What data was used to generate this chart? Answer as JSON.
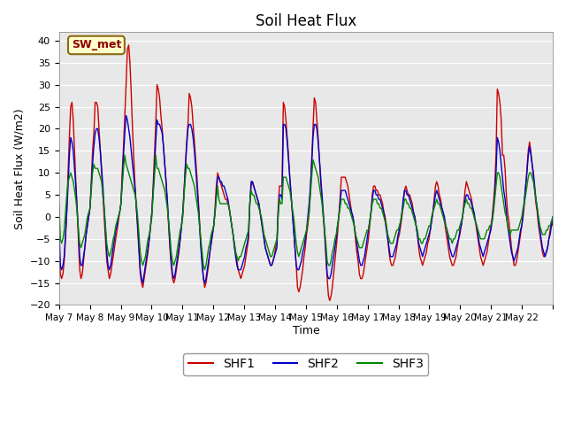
{
  "title": "Soil Heat Flux",
  "ylabel": "Soil Heat Flux (W/m2)",
  "xlabel": "Time",
  "ylim": [
    -20,
    42
  ],
  "yticks": [
    -20,
    -15,
    -10,
    -5,
    0,
    5,
    10,
    15,
    20,
    25,
    30,
    35,
    40
  ],
  "fig_bg": "#ffffff",
  "plot_bg": "#e8e8e8",
  "annotation_text": "SW_met",
  "annotation_bg": "#ffffcc",
  "annotation_border": "#8B6914",
  "annotation_text_color": "#8B0000",
  "line_colors": {
    "SHF1": "#cc0000",
    "SHF2": "#0000cc",
    "SHF3": "#008800"
  },
  "shf1": [
    -6,
    -13,
    -14,
    -13,
    -10,
    -5,
    2,
    10,
    18,
    25,
    26,
    22,
    15,
    8,
    2,
    -5,
    -12,
    -14,
    -13,
    -10,
    -7,
    -4,
    -2,
    0,
    2,
    8,
    15,
    19,
    26,
    26,
    25,
    20,
    15,
    10,
    5,
    0,
    -5,
    -10,
    -12,
    -14,
    -13,
    -11,
    -9,
    -7,
    -5,
    -3,
    -1,
    1,
    3,
    10,
    16,
    23,
    30,
    38,
    39,
    35,
    28,
    20,
    13,
    7,
    2,
    -3,
    -8,
    -13,
    -15,
    -16,
    -14,
    -12,
    -10,
    -8,
    -5,
    -2,
    1,
    7,
    14,
    21,
    30,
    29,
    27,
    23,
    20,
    16,
    12,
    8,
    3,
    -2,
    -7,
    -11,
    -14,
    -15,
    -14,
    -12,
    -10,
    -8,
    -5,
    -2,
    1,
    6,
    12,
    17,
    21,
    28,
    27,
    25,
    21,
    17,
    13,
    9,
    4,
    -1,
    -6,
    -10,
    -14,
    -16,
    -15,
    -13,
    -11,
    -8,
    -6,
    -4,
    -2,
    2,
    7,
    10,
    9,
    8,
    7,
    6,
    5,
    4,
    4,
    3,
    2,
    0,
    -2,
    -4,
    -6,
    -8,
    -10,
    -12,
    -13,
    -14,
    -13,
    -12,
    -11,
    -9,
    -7,
    -5,
    3,
    7,
    8,
    7,
    6,
    5,
    4,
    3,
    1,
    -1,
    -3,
    -5,
    -7,
    -8,
    -9,
    -10,
    -11,
    -11,
    -10,
    -9,
    -7,
    -6,
    2,
    7,
    7,
    7,
    26,
    25,
    22,
    18,
    14,
    9,
    5,
    1,
    -3,
    -7,
    -11,
    -16,
    -17,
    -16,
    -14,
    -12,
    -9,
    -7,
    -4,
    -2,
    1,
    6,
    13,
    20,
    27,
    26,
    22,
    18,
    13,
    8,
    4,
    0,
    -4,
    -9,
    -14,
    -18,
    -19,
    -18,
    -16,
    -13,
    -10,
    -7,
    -4,
    0,
    4,
    9,
    9,
    9,
    9,
    8,
    7,
    5,
    3,
    1,
    0,
    -2,
    -5,
    -8,
    -10,
    -13,
    -14,
    -14,
    -13,
    -11,
    -9,
    -7,
    -5,
    -2,
    1,
    5,
    7,
    7,
    6,
    6,
    5,
    5,
    4,
    3,
    1,
    0,
    -2,
    -5,
    -8,
    -10,
    -11,
    -11,
    -10,
    -9,
    -7,
    -5,
    -4,
    -2,
    0,
    3,
    6,
    7,
    6,
    5,
    5,
    4,
    3,
    1,
    0,
    -2,
    -4,
    -7,
    -9,
    -10,
    -11,
    -10,
    -9,
    -8,
    -6,
    -5,
    -3,
    -1,
    1,
    4,
    7,
    8,
    7,
    5,
    4,
    2,
    1,
    -1,
    -3,
    -5,
    -7,
    -9,
    -10,
    -11,
    -11,
    -10,
    -9,
    -7,
    -5,
    -4,
    -2,
    0,
    3,
    6,
    8,
    7,
    6,
    5,
    4,
    2,
    0,
    -1,
    -3,
    -5,
    -7,
    -9,
    -10,
    -11,
    -10,
    -9,
    -8,
    -6,
    -4,
    -2,
    0,
    3,
    7,
    14,
    29,
    28,
    26,
    22,
    14,
    14,
    11,
    5,
    1,
    -1,
    -4,
    -7,
    -9,
    -11,
    -11,
    -10,
    -8,
    -6,
    -4,
    -2,
    0,
    3,
    7,
    11,
    15,
    17,
    15,
    12,
    9,
    6,
    3,
    1,
    -2,
    -4,
    -6,
    -8,
    -9,
    -9,
    -8,
    -7,
    -5,
    -3,
    -1,
    -2
  ],
  "shf2": [
    -2,
    -11,
    -12,
    -11,
    -9,
    -4,
    1,
    7,
    14,
    18,
    17,
    15,
    11,
    7,
    2,
    -3,
    -9,
    -11,
    -11,
    -9,
    -7,
    -4,
    -2,
    0,
    2,
    7,
    12,
    16,
    19,
    20,
    20,
    18,
    15,
    11,
    7,
    2,
    -3,
    -8,
    -11,
    -12,
    -11,
    -9,
    -7,
    -5,
    -3,
    -2,
    0,
    1,
    3,
    8,
    14,
    19,
    23,
    22,
    20,
    18,
    15,
    12,
    9,
    6,
    2,
    -2,
    -7,
    -12,
    -14,
    -15,
    -13,
    -11,
    -9,
    -7,
    -5,
    -2,
    1,
    6,
    11,
    17,
    22,
    21,
    21,
    20,
    19,
    16,
    12,
    8,
    4,
    -1,
    -6,
    -10,
    -13,
    -14,
    -13,
    -11,
    -9,
    -7,
    -5,
    -2,
    1,
    6,
    11,
    16,
    20,
    21,
    21,
    20,
    18,
    15,
    11,
    7,
    3,
    -2,
    -7,
    -11,
    -14,
    -15,
    -14,
    -12,
    -10,
    -8,
    -6,
    -4,
    -2,
    1,
    5,
    9,
    9,
    8,
    8,
    7,
    7,
    6,
    5,
    4,
    2,
    0,
    -2,
    -4,
    -7,
    -9,
    -11,
    -12,
    -12,
    -12,
    -11,
    -10,
    -9,
    -7,
    -6,
    -4,
    3,
    8,
    8,
    7,
    6,
    5,
    4,
    3,
    1,
    -1,
    -3,
    -5,
    -7,
    -8,
    -9,
    -10,
    -11,
    -11,
    -10,
    -9,
    -8,
    -7,
    1,
    5,
    5,
    4,
    21,
    21,
    20,
    17,
    13,
    9,
    5,
    1,
    -3,
    -7,
    -11,
    -12,
    -12,
    -11,
    -10,
    -8,
    -7,
    -5,
    -3,
    0,
    3,
    7,
    12,
    18,
    21,
    21,
    20,
    17,
    13,
    9,
    5,
    1,
    -3,
    -8,
    -13,
    -14,
    -14,
    -13,
    -11,
    -9,
    -7,
    -5,
    -2,
    0,
    3,
    6,
    6,
    6,
    6,
    5,
    4,
    3,
    2,
    1,
    0,
    -2,
    -4,
    -6,
    -8,
    -10,
    -11,
    -11,
    -10,
    -9,
    -7,
    -5,
    -3,
    -1,
    1,
    4,
    6,
    6,
    5,
    5,
    4,
    4,
    3,
    2,
    1,
    -1,
    -3,
    -5,
    -7,
    -9,
    -9,
    -9,
    -8,
    -7,
    -6,
    -4,
    -3,
    -1,
    1,
    4,
    6,
    6,
    5,
    5,
    4,
    3,
    2,
    1,
    0,
    -2,
    -4,
    -6,
    -7,
    -8,
    -9,
    -8,
    -7,
    -6,
    -5,
    -4,
    -3,
    -1,
    1,
    3,
    5,
    6,
    5,
    4,
    3,
    2,
    1,
    0,
    -2,
    -3,
    -5,
    -7,
    -8,
    -9,
    -9,
    -8,
    -7,
    -6,
    -5,
    -3,
    -2,
    0,
    2,
    4,
    5,
    5,
    4,
    4,
    3,
    2,
    1,
    -1,
    -2,
    -4,
    -6,
    -7,
    -8,
    -9,
    -8,
    -7,
    -6,
    -5,
    -4,
    -3,
    -1,
    2,
    5,
    10,
    18,
    17,
    15,
    12,
    9,
    6,
    4,
    1,
    -2,
    -4,
    -6,
    -8,
    -9,
    -10,
    -9,
    -8,
    -7,
    -5,
    -3,
    -2,
    1,
    4,
    7,
    10,
    14,
    16,
    14,
    12,
    10,
    7,
    4,
    2,
    -1,
    -3,
    -5,
    -7,
    -8,
    -9,
    -8,
    -7,
    -5,
    -4,
    -2,
    0
  ],
  "shf3": [
    3,
    -5,
    -6,
    -5,
    -3,
    1,
    5,
    8,
    9,
    10,
    9,
    8,
    6,
    4,
    1,
    -3,
    -6,
    -7,
    -6,
    -5,
    -4,
    -2,
    0,
    1,
    2,
    6,
    10,
    12,
    11,
    11,
    11,
    10,
    9,
    8,
    5,
    2,
    -2,
    -6,
    -8,
    -9,
    -8,
    -7,
    -5,
    -4,
    -2,
    -1,
    0,
    1,
    3,
    7,
    11,
    14,
    12,
    11,
    10,
    9,
    8,
    7,
    6,
    5,
    3,
    0,
    -4,
    -8,
    -10,
    -11,
    -10,
    -9,
    -7,
    -5,
    -4,
    -2,
    0,
    5,
    9,
    14,
    11,
    11,
    10,
    9,
    8,
    7,
    6,
    4,
    2,
    -1,
    -4,
    -8,
    -10,
    -11,
    -10,
    -9,
    -7,
    -5,
    -3,
    -2,
    0,
    5,
    9,
    12,
    11,
    11,
    10,
    9,
    8,
    7,
    5,
    3,
    1,
    -2,
    -5,
    -8,
    -11,
    -12,
    -11,
    -9,
    -7,
    -6,
    -4,
    -3,
    -2,
    1,
    4,
    7,
    4,
    3,
    3,
    3,
    3,
    3,
    3,
    3,
    2,
    0,
    -2,
    -4,
    -6,
    -8,
    -9,
    -10,
    -9,
    -9,
    -8,
    -7,
    -6,
    -5,
    -4,
    -3,
    3,
    6,
    5,
    5,
    4,
    3,
    3,
    2,
    1,
    0,
    -2,
    -4,
    -5,
    -6,
    -7,
    -8,
    -9,
    -9,
    -8,
    -7,
    -6,
    -5,
    0,
    4,
    3,
    3,
    9,
    9,
    9,
    8,
    7,
    6,
    4,
    2,
    0,
    -3,
    -6,
    -8,
    -9,
    -8,
    -7,
    -6,
    -5,
    -4,
    -3,
    -1,
    1,
    5,
    9,
    13,
    12,
    11,
    10,
    9,
    7,
    5,
    3,
    0,
    -3,
    -6,
    -10,
    -11,
    -11,
    -10,
    -8,
    -7,
    -5,
    -4,
    -2,
    0,
    2,
    4,
    4,
    4,
    3,
    3,
    2,
    2,
    1,
    0,
    -1,
    -2,
    -4,
    -5,
    -6,
    -7,
    -7,
    -7,
    -6,
    -5,
    -4,
    -3,
    -3,
    -1,
    1,
    3,
    4,
    4,
    4,
    3,
    3,
    2,
    2,
    1,
    0,
    -1,
    -2,
    -4,
    -5,
    -6,
    -6,
    -6,
    -5,
    -4,
    -3,
    -3,
    -2,
    -1,
    1,
    2,
    4,
    4,
    3,
    3,
    2,
    2,
    1,
    0,
    -1,
    -2,
    -3,
    -5,
    -5,
    -6,
    -6,
    -5,
    -5,
    -4,
    -3,
    -2,
    -2,
    0,
    1,
    2,
    3,
    4,
    3,
    3,
    2,
    1,
    0,
    -1,
    -2,
    -3,
    -4,
    -5,
    -5,
    -6,
    -5,
    -5,
    -4,
    -3,
    -3,
    -2,
    -1,
    0,
    2,
    3,
    4,
    3,
    3,
    2,
    2,
    1,
    0,
    -1,
    -2,
    -3,
    -4,
    -5,
    -5,
    -5,
    -5,
    -4,
    -3,
    -3,
    -2,
    -2,
    -1,
    1,
    4,
    7,
    10,
    10,
    9,
    7,
    5,
    3,
    1,
    0,
    -2,
    -3,
    -4,
    -3,
    -3,
    -3,
    -3,
    -3,
    -3,
    -2,
    -1,
    0,
    2,
    3,
    5,
    7,
    9,
    10,
    10,
    9,
    8,
    6,
    4,
    2,
    0,
    -2,
    -3,
    -4,
    -4,
    -4,
    -3,
    -3,
    -2,
    -2,
    -1,
    0
  ]
}
